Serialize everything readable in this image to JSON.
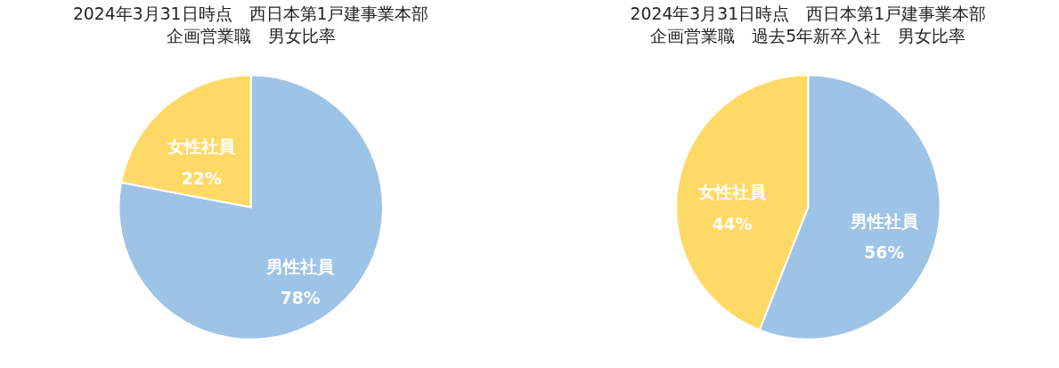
{
  "chart_data": [
    {
      "type": "pie",
      "title": "2024年3月31日時点　西日本第1戸建事業本部",
      "subtitle": "企画営業職　男女比率",
      "categories": [
        "男性社員",
        "女性社員"
      ],
      "values": [
        78,
        22
      ],
      "colors": [
        "#9dc3e6",
        "#ffd966"
      ],
      "value_labels": [
        "78%",
        "22%"
      ],
      "legend": false
    },
    {
      "type": "pie",
      "title": "2024年3月31日時点　西日本第1戸建事業本部",
      "subtitle": "企画営業職　過去5年新卒入社　男女比率",
      "categories": [
        "男性社員",
        "女性社員"
      ],
      "values": [
        56,
        44
      ],
      "colors": [
        "#9dc3e6",
        "#ffd966"
      ],
      "value_labels": [
        "56%",
        "44%"
      ],
      "legend": false
    }
  ]
}
